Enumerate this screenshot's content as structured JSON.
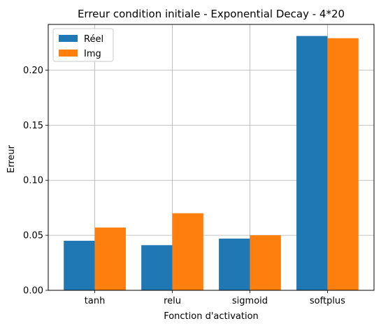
{
  "chart_data": {
    "type": "bar",
    "title": "Erreur condition initiale - Exponential Decay - 4*20",
    "xlabel": "Fonction d'activation",
    "ylabel": "Erreur",
    "categories": [
      "tanh",
      "relu",
      "sigmoid",
      "softplus"
    ],
    "series": [
      {
        "name": "Réel",
        "color": "#1f77b4",
        "values": [
          0.045,
          0.041,
          0.047,
          0.231
        ]
      },
      {
        "name": "Img",
        "color": "#ff7f0e",
        "values": [
          0.057,
          0.07,
          0.05,
          0.229
        ]
      }
    ],
    "ylim": [
      0,
      0.2415
    ],
    "yticks": [
      0.0,
      0.05,
      0.1,
      0.15,
      0.2
    ],
    "ytick_labels": [
      "0.00",
      "0.05",
      "0.10",
      "0.15",
      "0.20"
    ],
    "grid": true,
    "legend": "top-left"
  }
}
